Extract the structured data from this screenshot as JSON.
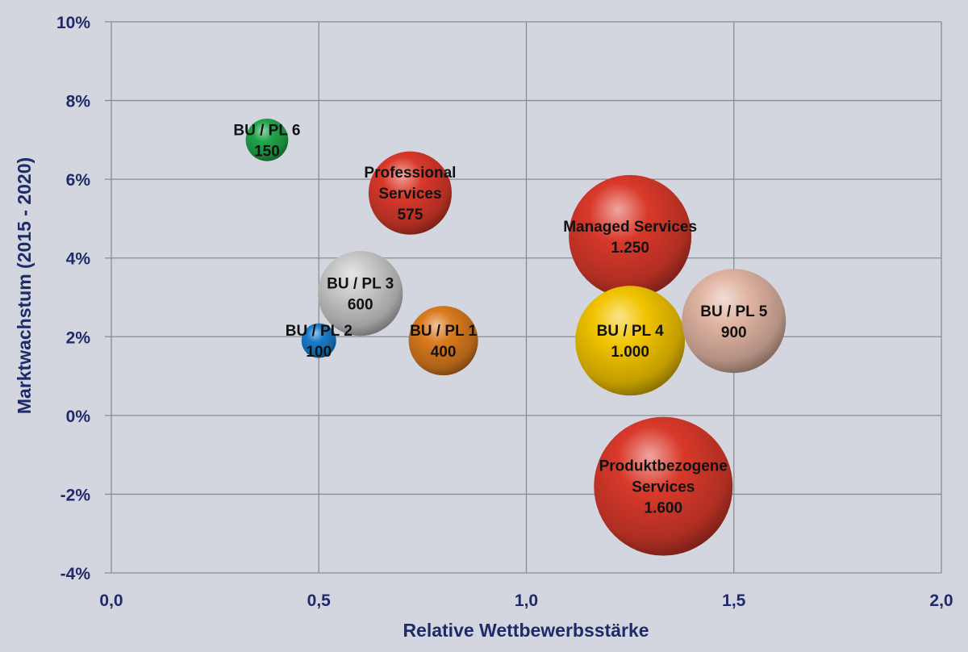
{
  "chart_data": {
    "type": "scatter",
    "subtype": "bubble",
    "title": "",
    "xlabel": "Relative Wettbewerbsstärke",
    "ylabel": "Marktwachstum (2015 - 2020)",
    "xlim": [
      0.0,
      2.0
    ],
    "ylim": [
      -4,
      10
    ],
    "x_ticks": [
      "0,0",
      "0,5",
      "1,0",
      "1,5",
      "2,0"
    ],
    "x_tick_values": [
      0.0,
      0.5,
      1.0,
      1.5,
      2.0
    ],
    "y_ticks": [
      "10%",
      "8%",
      "6%",
      "4%",
      "2%",
      "0%",
      "-2%",
      "-4%"
    ],
    "y_tick_values": [
      10,
      8,
      6,
      4,
      2,
      0,
      -2,
      -4
    ],
    "grid": true,
    "legend": null,
    "series": [
      {
        "name": "BU / PL 6",
        "label_lines": [
          "BU / PL 6",
          "150"
        ],
        "x": 0.375,
        "y": 7.0,
        "size": 150,
        "size_label": "150",
        "color": "#1fa64a"
      },
      {
        "name": "Professional Services",
        "label_lines": [
          "Professional",
          "Services",
          "575"
        ],
        "x": 0.72,
        "y": 5.65,
        "size": 575,
        "size_label": "575",
        "color": "#d9392a"
      },
      {
        "name": "BU / PL 3",
        "label_lines": [
          "BU / PL 3",
          "600"
        ],
        "x": 0.6,
        "y": 3.1,
        "size": 600,
        "size_label": "600",
        "color": "#c8c8c8"
      },
      {
        "name": "BU / PL 2",
        "label_lines": [
          "BU / PL 2",
          "100"
        ],
        "x": 0.5,
        "y": 1.9,
        "size": 100,
        "size_label": "100",
        "color": "#1a7cc9"
      },
      {
        "name": "BU / PL 1",
        "label_lines": [
          "BU / PL 1",
          "400"
        ],
        "x": 0.8,
        "y": 1.9,
        "size": 400,
        "size_label": "400",
        "color": "#d97a1e"
      },
      {
        "name": "Managed Services",
        "label_lines": [
          "Managed Services",
          "1.250"
        ],
        "x": 1.25,
        "y": 4.55,
        "size": 1250,
        "size_label": "1.250",
        "color": "#d9392a"
      },
      {
        "name": "BU / PL 4",
        "label_lines": [
          "BU / PL 4",
          "1.000"
        ],
        "x": 1.25,
        "y": 1.9,
        "size": 1000,
        "size_label": "1.000",
        "color": "#f2c400"
      },
      {
        "name": "BU / PL 5",
        "label_lines": [
          "BU / PL 5",
          "900"
        ],
        "x": 1.5,
        "y": 2.4,
        "size": 900,
        "size_label": "900",
        "color": "#e0b4a2"
      },
      {
        "name": "Produktbezogene Services",
        "label_lines": [
          "Produktbezogene",
          "Services",
          "1.600"
        ],
        "x": 1.33,
        "y": -1.8,
        "size": 1600,
        "size_label": "1.600",
        "color": "#d9392a"
      }
    ]
  }
}
